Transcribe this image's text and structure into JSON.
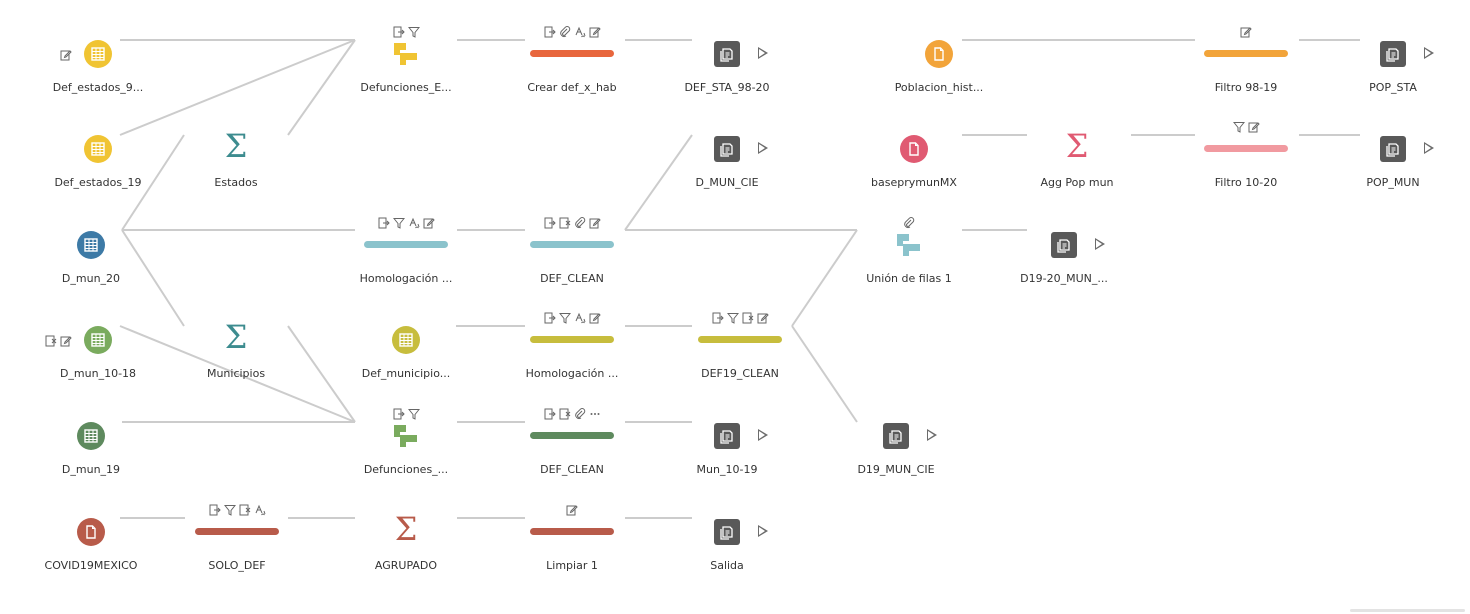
{
  "colors": {
    "yellow": "#f0c433",
    "orange_red": "#e8663d",
    "orange": "#f2a43a",
    "pink": "#e05a72",
    "light_pink": "#f19aa0",
    "teal": "#3d8c8f",
    "blue": "#3d7aa6",
    "light_blue": "#8bc3cc",
    "olive": "#c7bd3d",
    "green": "#7aab5e",
    "dark_green": "#5e8a5e",
    "brown_red": "#b85b4a",
    "output_gray": "#595959",
    "edge_gray": "#cccccc"
  },
  "nodes": [
    {
      "id": "def_estados_9",
      "type": "input-table",
      "color": "yellow",
      "label": "Def_estados_9...",
      "side_icons": [
        "edit-icon"
      ]
    },
    {
      "id": "defunciones_e",
      "type": "join",
      "color": "yellow",
      "label": "Defunciones_E...",
      "top_icons": [
        "output-change-icon",
        "filter-icon"
      ]
    },
    {
      "id": "crear_def_x_hab",
      "type": "clean",
      "color": "orange_red",
      "label": "Crear def_x_hab",
      "top_icons": [
        "output-change-icon",
        "attach-icon",
        "calc-icon",
        "edit-icon"
      ]
    },
    {
      "id": "def_sta_98_20",
      "type": "output",
      "label": "DEF_STA_98-20"
    },
    {
      "id": "poblacion_hist",
      "type": "input-file",
      "color": "orange",
      "label": "Poblacion_hist..."
    },
    {
      "id": "filtro_98_19",
      "type": "clean",
      "color": "orange",
      "label": "Filtro 98-19",
      "top_icons": [
        "edit-icon"
      ]
    },
    {
      "id": "pop_sta",
      "type": "output",
      "label": "POP_STA"
    },
    {
      "id": "def_estados_19",
      "type": "input-table",
      "color": "yellow",
      "label": "Def_estados_19"
    },
    {
      "id": "estados",
      "type": "aggregate",
      "color": "teal",
      "label": "Estados"
    },
    {
      "id": "d_mun_cie",
      "type": "output",
      "label": "D_MUN_CIE"
    },
    {
      "id": "baseprymunmx",
      "type": "input-file",
      "color": "pink",
      "label": "baseprymunMX"
    },
    {
      "id": "agg_pop_mun",
      "type": "aggregate",
      "color": "pink",
      "label": "Agg Pop mun"
    },
    {
      "id": "filtro_10_20",
      "type": "clean",
      "color": "light_pink",
      "label": "Filtro 10-20",
      "top_icons": [
        "filter-icon",
        "edit-icon"
      ]
    },
    {
      "id": "pop_mun",
      "type": "output",
      "label": "POP_MUN"
    },
    {
      "id": "d_mun_20",
      "type": "input-table",
      "color": "blue",
      "label": "D_mun_20"
    },
    {
      "id": "homologacion_1",
      "type": "clean",
      "color": "light_blue",
      "label": "Homologación ...",
      "top_icons": [
        "output-change-icon",
        "filter-icon",
        "calc-icon",
        "edit-icon"
      ]
    },
    {
      "id": "def_clean_1",
      "type": "clean",
      "color": "light_blue",
      "label": "DEF_CLEAN",
      "top_icons": [
        "output-change-icon",
        "remove-icon",
        "attach-icon",
        "edit-icon"
      ]
    },
    {
      "id": "union_de_filas_1",
      "type": "join",
      "color": "light_blue",
      "label": "Unión de filas 1",
      "top_icons": [
        "attach-icon"
      ]
    },
    {
      "id": "d19_20_mun",
      "type": "output",
      "label": "D19-20_MUN_..."
    },
    {
      "id": "d_mun_10_18",
      "type": "input-table",
      "color": "green",
      "label": "D_mun_10-18",
      "side_icons": [
        "remove-icon",
        "edit-icon"
      ]
    },
    {
      "id": "municipios",
      "type": "aggregate",
      "color": "teal",
      "label": "Municipios"
    },
    {
      "id": "def_municipio",
      "type": "input-table",
      "color": "olive",
      "label": "Def_municipio..."
    },
    {
      "id": "homologacion_2",
      "type": "clean",
      "color": "olive",
      "label": "Homologación ...",
      "top_icons": [
        "output-change-icon",
        "filter-icon",
        "calc-icon",
        "edit-icon"
      ]
    },
    {
      "id": "def19_clean",
      "type": "clean",
      "color": "olive",
      "label": "DEF19_CLEAN",
      "top_icons": [
        "output-change-icon",
        "filter-icon",
        "remove-icon",
        "edit-icon"
      ]
    },
    {
      "id": "d_mun_19",
      "type": "input-table",
      "color": "dark_green",
      "label": "D_mun_19"
    },
    {
      "id": "defunciones_2",
      "type": "join",
      "color": "green",
      "label": "Defunciones_...",
      "top_icons": [
        "output-change-icon",
        "filter-icon"
      ]
    },
    {
      "id": "def_clean_2",
      "type": "clean",
      "color": "dark_green",
      "label": "DEF_CLEAN",
      "top_icons": [
        "output-change-icon",
        "remove-icon",
        "attach-icon",
        "more-icon"
      ]
    },
    {
      "id": "mun_10_19",
      "type": "output",
      "label": "Mun_10-19"
    },
    {
      "id": "d19_mun_cie",
      "type": "output",
      "label": "D19_MUN_CIE"
    },
    {
      "id": "covid19mexico",
      "type": "input-file",
      "color": "brown_red",
      "label": "COVID19MEXICO"
    },
    {
      "id": "solo_def",
      "type": "clean",
      "color": "brown_red",
      "label": "SOLO_DEF",
      "top_icons": [
        "output-change-icon",
        "filter-icon",
        "remove-icon",
        "calc-icon"
      ]
    },
    {
      "id": "agrupado",
      "type": "aggregate",
      "color": "brown_red",
      "label": "AGRUPADO"
    },
    {
      "id": "limpiar_1",
      "type": "clean",
      "color": "brown_red",
      "label": "Limpiar 1",
      "top_icons": [
        "edit-icon"
      ]
    },
    {
      "id": "salida",
      "type": "output",
      "label": "Salida"
    }
  ]
}
